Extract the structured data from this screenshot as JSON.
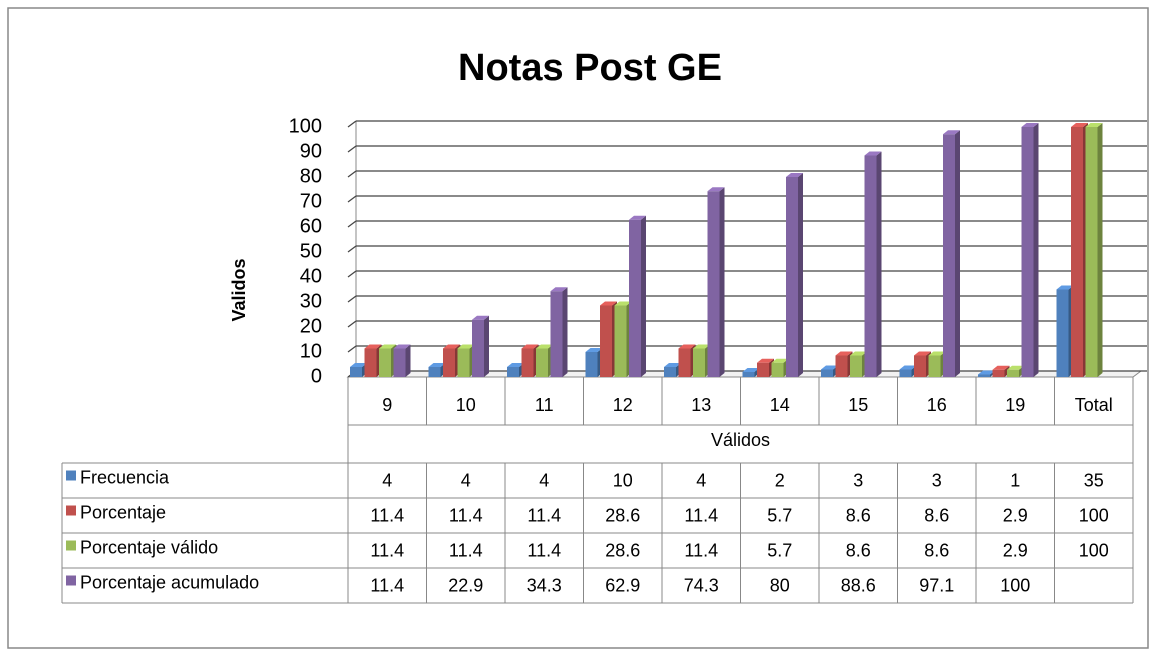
{
  "chart_data": {
    "type": "bar3d",
    "title": "Notas Post GE",
    "y_label": "Validos",
    "x_label": "Válidos",
    "categories": [
      "9",
      "10",
      "11",
      "12",
      "13",
      "14",
      "15",
      "16",
      "19",
      "Total"
    ],
    "ylim": [
      0,
      100
    ],
    "yticks": [
      0,
      10,
      20,
      30,
      40,
      50,
      60,
      70,
      80,
      90,
      100
    ],
    "grid": true,
    "series": [
      {
        "name": "Frecuencia",
        "color": "#4f81bd",
        "values": [
          4,
          4,
          4,
          10,
          4,
          2,
          3,
          3,
          1,
          35
        ]
      },
      {
        "name": "Porcentaje",
        "color": "#c0504d",
        "values": [
          11.4,
          11.4,
          11.4,
          28.6,
          11.4,
          5.7,
          8.6,
          8.6,
          2.9,
          100
        ]
      },
      {
        "name": "Porcentaje válido",
        "color": "#9bbb59",
        "values": [
          11.4,
          11.4,
          11.4,
          28.6,
          11.4,
          5.7,
          8.6,
          8.6,
          2.9,
          100
        ]
      },
      {
        "name": "Porcentaje acumulado",
        "color": "#8064a2",
        "values": [
          11.4,
          22.9,
          34.3,
          62.9,
          74.3,
          80,
          88.6,
          97.1,
          100,
          null
        ]
      }
    ]
  }
}
